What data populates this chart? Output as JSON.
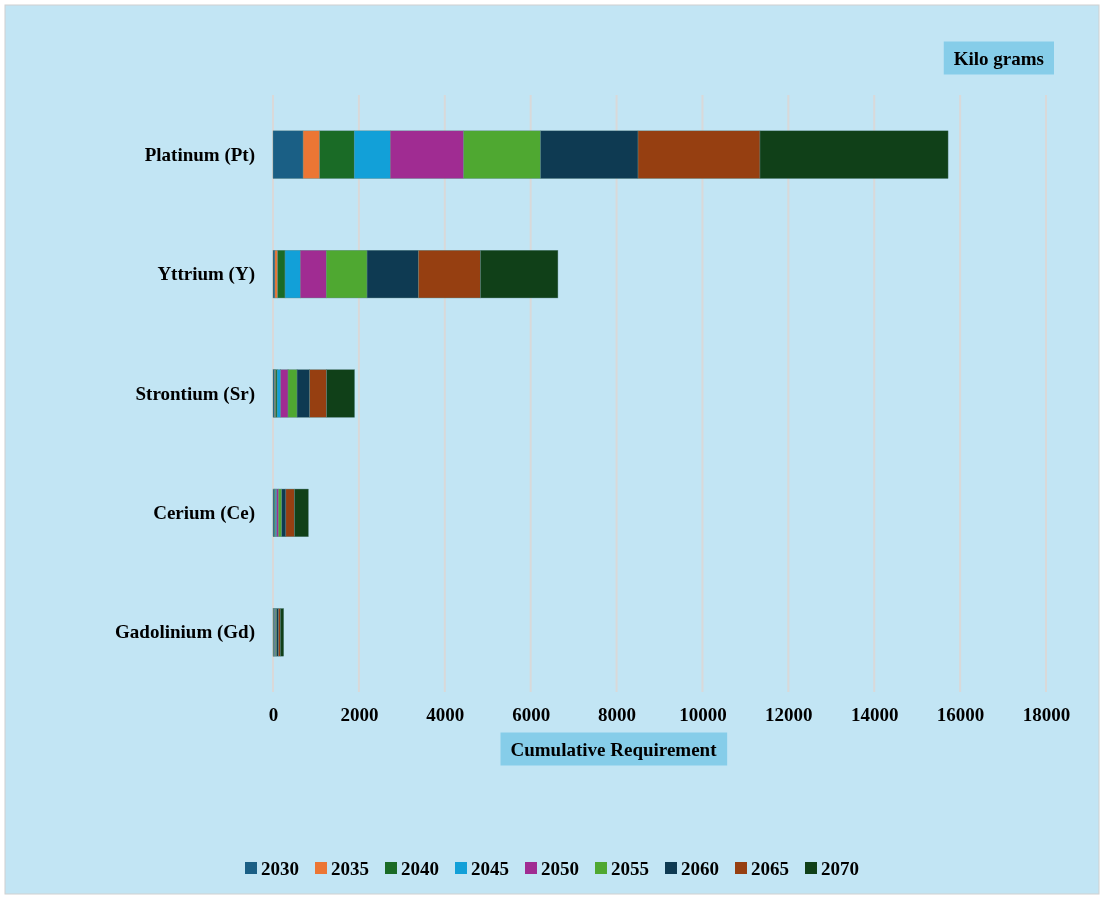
{
  "chart_data": {
    "type": "bar",
    "orientation": "horizontal",
    "stacked": true,
    "xlabel": "Cumulative Requirement",
    "annotations": [
      "Kilo grams"
    ],
    "categories": [
      "Platinum (Pt)",
      "Yttrium (Y)",
      "Strontium (Sr)",
      "Cerium (Ce)",
      "Gadolinium (Gd)"
    ],
    "series": [
      {
        "name": "2030",
        "color": "#1a5f85",
        "values": [
          700,
          45,
          40,
          25,
          10
        ]
      },
      {
        "name": "2035",
        "color": "#ec7634",
        "values": [
          390,
          65,
          20,
          10,
          5
        ]
      },
      {
        "name": "2040",
        "color": "#1a6b26",
        "values": [
          800,
          170,
          35,
          20,
          10
        ]
      },
      {
        "name": "2045",
        "color": "#12a0d8",
        "values": [
          840,
          355,
          85,
          30,
          15
        ]
      },
      {
        "name": "2050",
        "color": "#a02c92",
        "values": [
          1710,
          605,
          170,
          45,
          20
        ]
      },
      {
        "name": "2055",
        "color": "#4fa831",
        "values": [
          1790,
          950,
          210,
          75,
          25
        ]
      },
      {
        "name": "2060",
        "color": "#0e3a52",
        "values": [
          2270,
          1195,
          295,
          95,
          40
        ]
      },
      {
        "name": "2065",
        "color": "#963f11",
        "values": [
          2840,
          1445,
          395,
          200,
          45
        ]
      },
      {
        "name": "2070",
        "color": "#104018",
        "values": [
          4380,
          1805,
          650,
          325,
          80
        ]
      }
    ],
    "xlim": [
      0,
      18000
    ],
    "xticks": [
      0,
      2000,
      4000,
      6000,
      8000,
      10000,
      12000,
      14000,
      16000,
      18000
    ],
    "grid": "x",
    "legend": "bottom"
  }
}
